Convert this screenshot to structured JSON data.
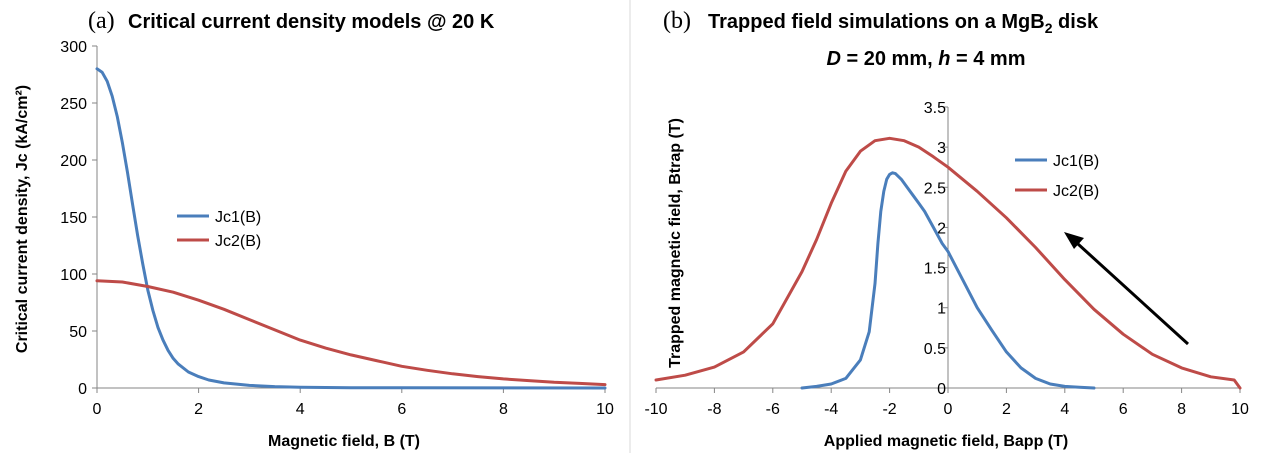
{
  "chart_data": [
    {
      "type": "line",
      "panel_tag": "(a)",
      "title": "Critical current density models @ 20 K",
      "xlabel": "Magnetic field, B (T)",
      "ylabel": "Critical current density, Jc (kA/cm²)",
      "xlim": [
        0,
        10
      ],
      "ylim": [
        0,
        300
      ],
      "xticks": [
        "0",
        "2",
        "4",
        "6",
        "8",
        "10"
      ],
      "yticks": [
        "0",
        "50",
        "100",
        "150",
        "200",
        "250",
        "300"
      ],
      "grid": false,
      "legend_position": "center",
      "series": [
        {
          "name": "Jc1(B)",
          "color": "#4a7ebb",
          "x": [
            0,
            0.1,
            0.2,
            0.3,
            0.4,
            0.5,
            0.6,
            0.7,
            0.8,
            0.9,
            1.0,
            1.1,
            1.2,
            1.3,
            1.4,
            1.5,
            1.6,
            1.8,
            2.0,
            2.2,
            2.5,
            3.0,
            3.5,
            4.0,
            5.0,
            6.0,
            8.0,
            10.0
          ],
          "y": [
            280,
            277,
            269,
            256,
            238,
            215,
            189,
            161,
            134,
            109,
            86,
            68,
            53,
            42,
            33,
            26,
            21,
            14,
            10,
            7,
            4.5,
            2.3,
            1.2,
            0.7,
            0.3,
            0.15,
            0.05,
            0
          ]
        },
        {
          "name": "Jc2(B)",
          "color": "#be4b48",
          "x": [
            0,
            0.5,
            1.0,
            1.5,
            2.0,
            2.5,
            3.0,
            3.5,
            4.0,
            4.5,
            5.0,
            5.5,
            6.0,
            6.5,
            7.0,
            7.5,
            8.0,
            8.5,
            9.0,
            9.5,
            10.0
          ],
          "y": [
            94,
            93,
            89,
            84,
            77,
            69,
            60,
            51,
            42,
            35,
            29,
            24,
            19,
            15.5,
            12.5,
            10,
            8,
            6.5,
            5,
            4,
            3
          ]
        }
      ]
    },
    {
      "type": "line",
      "panel_tag": "(b)",
      "title": "Trapped field simulations on a MgB",
      "title_subscript": "2",
      "title_suffix": " disk",
      "subtitle_parts": [
        "D",
        " = 20 mm, ",
        "h",
        " = 4 mm"
      ],
      "xlabel": "Applied magnetic field, Bapp (T)",
      "ylabel": "Trapped magnetic field, Btrap (T)",
      "xlim": [
        -10,
        10
      ],
      "ylim": [
        0,
        3.5
      ],
      "xticks": [
        "-10",
        "-8",
        "-6",
        "-4",
        "-2",
        "0",
        "2",
        "4",
        "6",
        "8",
        "10"
      ],
      "yticks": [
        "0",
        "0.5",
        "1",
        "1.5",
        "2",
        "2.5",
        "3",
        "3.5"
      ],
      "grid": false,
      "legend_position": "upper right",
      "annotation": "arrow pointing upper-left",
      "series": [
        {
          "name": "Jc1(B)",
          "color": "#4a7ebb",
          "x": [
            -5.0,
            -4.5,
            -4.0,
            -3.5,
            -3.0,
            -2.7,
            -2.5,
            -2.4,
            -2.3,
            -2.2,
            -2.1,
            -2.0,
            -1.9,
            -1.8,
            -1.6,
            -1.4,
            -1.2,
            -1.0,
            -0.8,
            -0.5,
            -0.2,
            0.0,
            0.5,
            1.0,
            1.5,
            2.0,
            2.5,
            3.0,
            3.5,
            4.0,
            4.5,
            5.0
          ],
          "y": [
            0.0,
            0.02,
            0.05,
            0.12,
            0.35,
            0.7,
            1.3,
            1.8,
            2.2,
            2.45,
            2.6,
            2.66,
            2.68,
            2.67,
            2.6,
            2.5,
            2.4,
            2.3,
            2.2,
            2.0,
            1.8,
            1.7,
            1.35,
            1.0,
            0.72,
            0.45,
            0.25,
            0.12,
            0.05,
            0.02,
            0.01,
            0.0
          ]
        },
        {
          "name": "Jc2(B)",
          "color": "#be4b48",
          "x": [
            -10,
            -9,
            -8,
            -7,
            -6,
            -5,
            -4.5,
            -4,
            -3.5,
            -3,
            -2.5,
            -2,
            -1.5,
            -1,
            -0.5,
            0,
            1,
            2,
            3,
            4,
            5,
            6,
            7,
            8,
            9,
            9.8,
            10
          ],
          "y": [
            0.1,
            0.16,
            0.26,
            0.45,
            0.8,
            1.45,
            1.85,
            2.3,
            2.7,
            2.95,
            3.08,
            3.11,
            3.08,
            3.0,
            2.88,
            2.75,
            2.45,
            2.12,
            1.75,
            1.35,
            0.98,
            0.67,
            0.42,
            0.25,
            0.14,
            0.1,
            0.0
          ]
        }
      ]
    }
  ]
}
